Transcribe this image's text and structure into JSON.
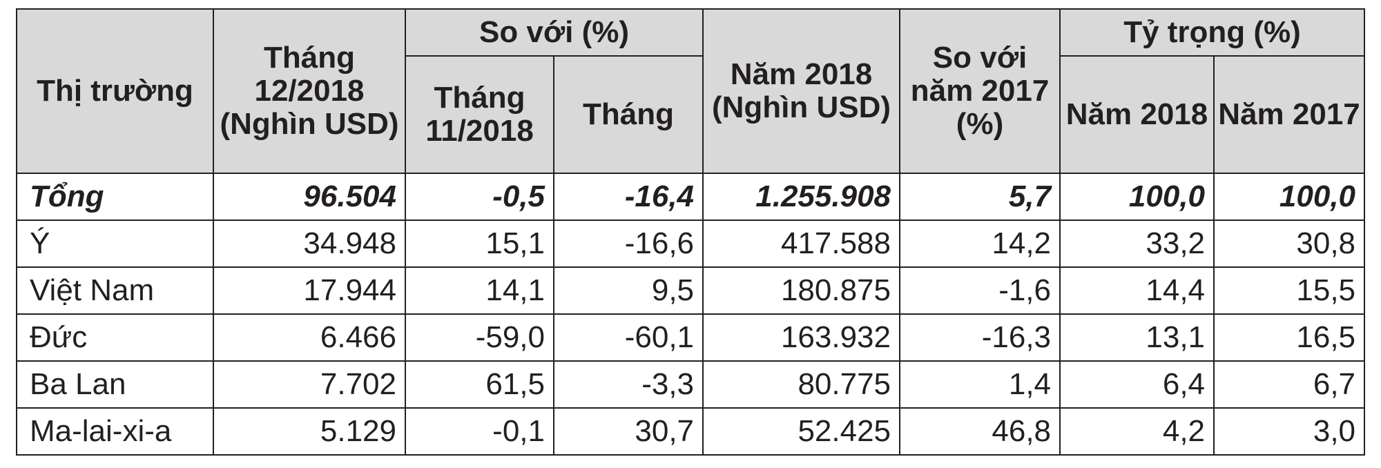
{
  "header": {
    "market": "Thị trường",
    "dec_2018": "Tháng 12/2018 (Nghìn USD)",
    "compare_group": "So với (%)",
    "nov_2018": "Tháng 11/2018",
    "month": "Tháng",
    "year_2018": "Năm 2018 (Nghìn USD)",
    "vs_2017": "So với năm 2017 (%)",
    "share_group": "Tỷ trọng (%)",
    "share_2018": "Năm 2018",
    "share_2017": "Năm 2017"
  },
  "total": {
    "name": "Tổng",
    "dec_2018": "96.504",
    "vs_nov": "-0,5",
    "vs_month": "-16,4",
    "year_2018": "1.255.908",
    "vs_2017": "5,7",
    "share_2018": "100,0",
    "share_2017": "100,0"
  },
  "rows": [
    {
      "name": "Ý",
      "dec_2018": "34.948",
      "vs_nov": "15,1",
      "vs_month": "-16,6",
      "year_2018": "417.588",
      "vs_2017": "14,2",
      "share_2018": "33,2",
      "share_2017": "30,8"
    },
    {
      "name": "Việt Nam",
      "dec_2018": "17.944",
      "vs_nov": "14,1",
      "vs_month": "9,5",
      "year_2018": "180.875",
      "vs_2017": "-1,6",
      "share_2018": "14,4",
      "share_2017": "15,5"
    },
    {
      "name": "Đức",
      "dec_2018": "6.466",
      "vs_nov": "-59,0",
      "vs_month": "-60,1",
      "year_2018": "163.932",
      "vs_2017": "-16,3",
      "share_2018": "13,1",
      "share_2017": "16,5"
    },
    {
      "name": "Ba Lan",
      "dec_2018": "7.702",
      "vs_nov": "61,5",
      "vs_month": "-3,3",
      "year_2018": "80.775",
      "vs_2017": "1,4",
      "share_2018": "6,4",
      "share_2017": "6,7"
    },
    {
      "name": "Ma-lai-xi-a",
      "dec_2018": "5.129",
      "vs_nov": "-0,1",
      "vs_month": "30,7",
      "year_2018": "52.425",
      "vs_2017": "46,8",
      "share_2018": "4,2",
      "share_2017": "3,0"
    }
  ]
}
